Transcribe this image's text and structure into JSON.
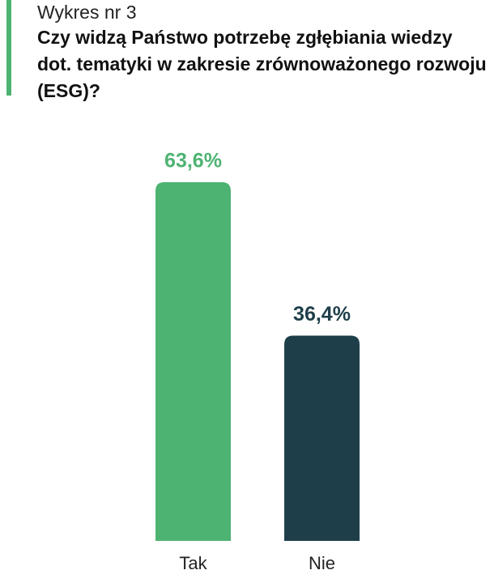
{
  "chart_data": {
    "type": "bar",
    "label": "Wykres nr 3",
    "title": "Czy widzą Państwo potrzebę zgłębiania wiedzy dot. tematyki w zakresie zrównoważonego rozwoju (ESG)?",
    "categories": [
      "Tak",
      "Nie"
    ],
    "values": [
      63.6,
      36.4
    ],
    "value_labels": [
      "63,6%",
      "36,4%"
    ],
    "colors": [
      "#4db372",
      "#1e3f4a"
    ]
  }
}
